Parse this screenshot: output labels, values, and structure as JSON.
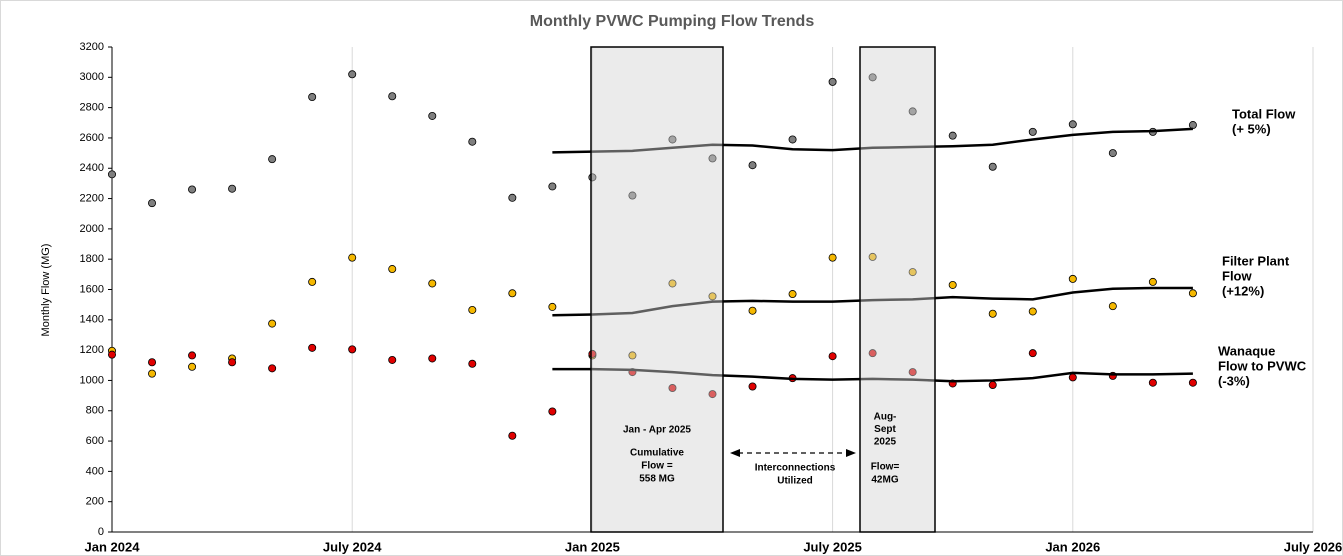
{
  "chart_data": {
    "type": "scatter",
    "title": "Monthly PVWC Pumping Flow Trends",
    "y_label": "Monthly Flow (MG)",
    "x": [
      "2024-01",
      "2024-02",
      "2024-03",
      "2024-04",
      "2024-05",
      "2024-06",
      "2024-07",
      "2024-08",
      "2024-09",
      "2024-10",
      "2024-11",
      "2024-12",
      "2025-01",
      "2025-02",
      "2025-03",
      "2025-04",
      "2025-05",
      "2025-06",
      "2025-07",
      "2025-08",
      "2025-09",
      "2025-10",
      "2025-11",
      "2025-12",
      "2026-01",
      "2026-02",
      "2026-03",
      "2026-04"
    ],
    "xlim": [
      "2024-01",
      "2026-07"
    ],
    "xticks": [
      {
        "value": "2024-01",
        "label": "Jan 2024"
      },
      {
        "value": "2024-07",
        "label": "July 2024"
      },
      {
        "value": "2025-01",
        "label": "Jan 2025"
      },
      {
        "value": "2025-07",
        "label": "July 2025"
      },
      {
        "value": "2026-01",
        "label": "Jan 2026"
      },
      {
        "value": "2026-07",
        "label": "July 2026"
      }
    ],
    "ylim": [
      0,
      3200
    ],
    "yticks": [
      0,
      200,
      400,
      600,
      800,
      1000,
      1200,
      1400,
      1600,
      1800,
      2000,
      2200,
      2400,
      2600,
      2800,
      3000,
      3200
    ],
    "grid": "x",
    "series": [
      {
        "label": [
          "Total Flow",
          "(+ 5%)"
        ],
        "color": "#7f7f7f",
        "values": [
          2360,
          2170,
          2260,
          2265,
          2460,
          2870,
          3020,
          2875,
          2745,
          2575,
          2205,
          2280,
          2340,
          2220,
          2590,
          2465,
          2420,
          2590,
          2970,
          3000,
          2775,
          2615,
          2410,
          2640,
          2690,
          2500,
          2640,
          2685
        ],
        "trend": [
          null,
          null,
          null,
          null,
          null,
          null,
          null,
          null,
          null,
          null,
          null,
          2505,
          2510,
          2515,
          2535,
          2555,
          2550,
          2525,
          2520,
          2535,
          2540,
          2545,
          2555,
          2590,
          2620,
          2640,
          2645,
          2660
        ]
      },
      {
        "label": [
          "Filter Plant",
          "Flow",
          "(+12%)"
        ],
        "color": "#f5b800",
        "values": [
          1195,
          1045,
          1090,
          1145,
          1375,
          1650,
          1810,
          1735,
          1640,
          1465,
          1575,
          1485,
          1165,
          1165,
          1640,
          1555,
          1460,
          1570,
          1810,
          1815,
          1715,
          1630,
          1440,
          1455,
          1670,
          1490,
          1650,
          1575
        ],
        "trend": [
          null,
          null,
          null,
          null,
          null,
          null,
          null,
          null,
          null,
          null,
          null,
          1430,
          1435,
          1445,
          1490,
          1520,
          1525,
          1520,
          1520,
          1530,
          1535,
          1550,
          1540,
          1535,
          1580,
          1605,
          1610,
          1610
        ]
      },
      {
        "label": [
          "Wanaque",
          "Flow to PVWC",
          "(-3%)"
        ],
        "color": "#e00000",
        "values": [
          1170,
          1120,
          1165,
          1120,
          1080,
          1215,
          1205,
          1135,
          1145,
          1110,
          635,
          795,
          1175,
          1055,
          950,
          910,
          960,
          1015,
          1160,
          1180,
          1055,
          980,
          970,
          1180,
          1020,
          1030,
          985,
          985
        ],
        "trend": [
          null,
          null,
          null,
          null,
          null,
          null,
          null,
          null,
          null,
          null,
          null,
          1075,
          1075,
          1070,
          1055,
          1035,
          1025,
          1010,
          1005,
          1010,
          1005,
          995,
          1000,
          1015,
          1050,
          1040,
          1040,
          1045
        ]
      }
    ],
    "annotations": {
      "box1_title": "Jan - Apr 2025",
      "box1_text": [
        "Cumulative",
        "Flow =",
        "558 MG"
      ],
      "box2_title": [
        "Aug-",
        "Sept",
        "2025"
      ],
      "box2_text": [
        "Flow=",
        "42MG"
      ],
      "arrow_text": [
        "Interconnections",
        "Utilized"
      ]
    }
  }
}
